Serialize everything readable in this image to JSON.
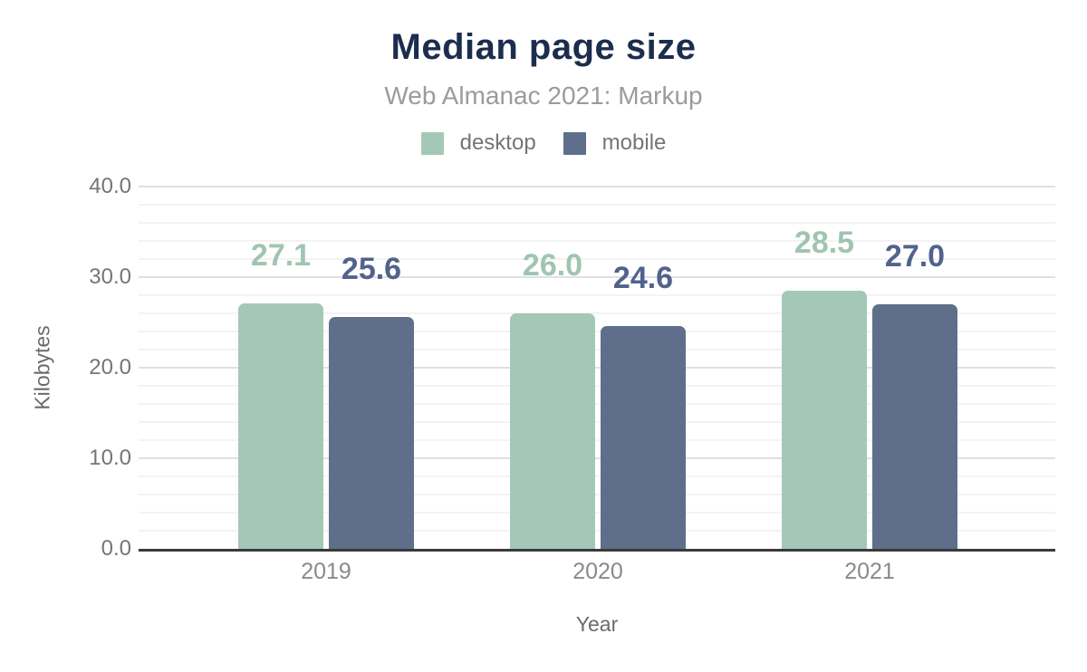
{
  "chart_data": {
    "type": "bar",
    "title": "Median page size",
    "subtitle": "Web Almanac 2021: Markup",
    "categories": [
      "2019",
      "2020",
      "2021"
    ],
    "series": [
      {
        "name": "desktop",
        "values": [
          27.1,
          26.0,
          28.5
        ],
        "value_labels": [
          "27.1",
          "26.0",
          "28.5"
        ],
        "color": "#a4c8b7",
        "label_color": "#9fc5b1"
      },
      {
        "name": "mobile",
        "values": [
          25.6,
          24.6,
          27.0
        ],
        "value_labels": [
          "25.6",
          "24.6",
          "27.0"
        ],
        "color": "#5f6e8a",
        "label_color": "#51628c"
      }
    ],
    "xlabel": "Year",
    "ylabel": "Kilobytes",
    "ylim": [
      0,
      40
    ],
    "yticks": [
      0,
      10,
      20,
      30,
      40
    ],
    "ytick_labels": [
      "0.0",
      "10.0",
      "20.0",
      "30.0",
      "40.0"
    ],
    "minor_grid_step": 2,
    "grid": true,
    "legend_position": "top"
  },
  "colors": {
    "title": "#1c2d4e",
    "subtitle": "#9b9b9b",
    "tick_text": "#757575",
    "axis_title_text": "#6b6b6b",
    "major_grid": "#e0e0e0",
    "minor_grid": "#f3f3f3",
    "axis_line": "#3a3a3a",
    "background": "#ffffff"
  }
}
